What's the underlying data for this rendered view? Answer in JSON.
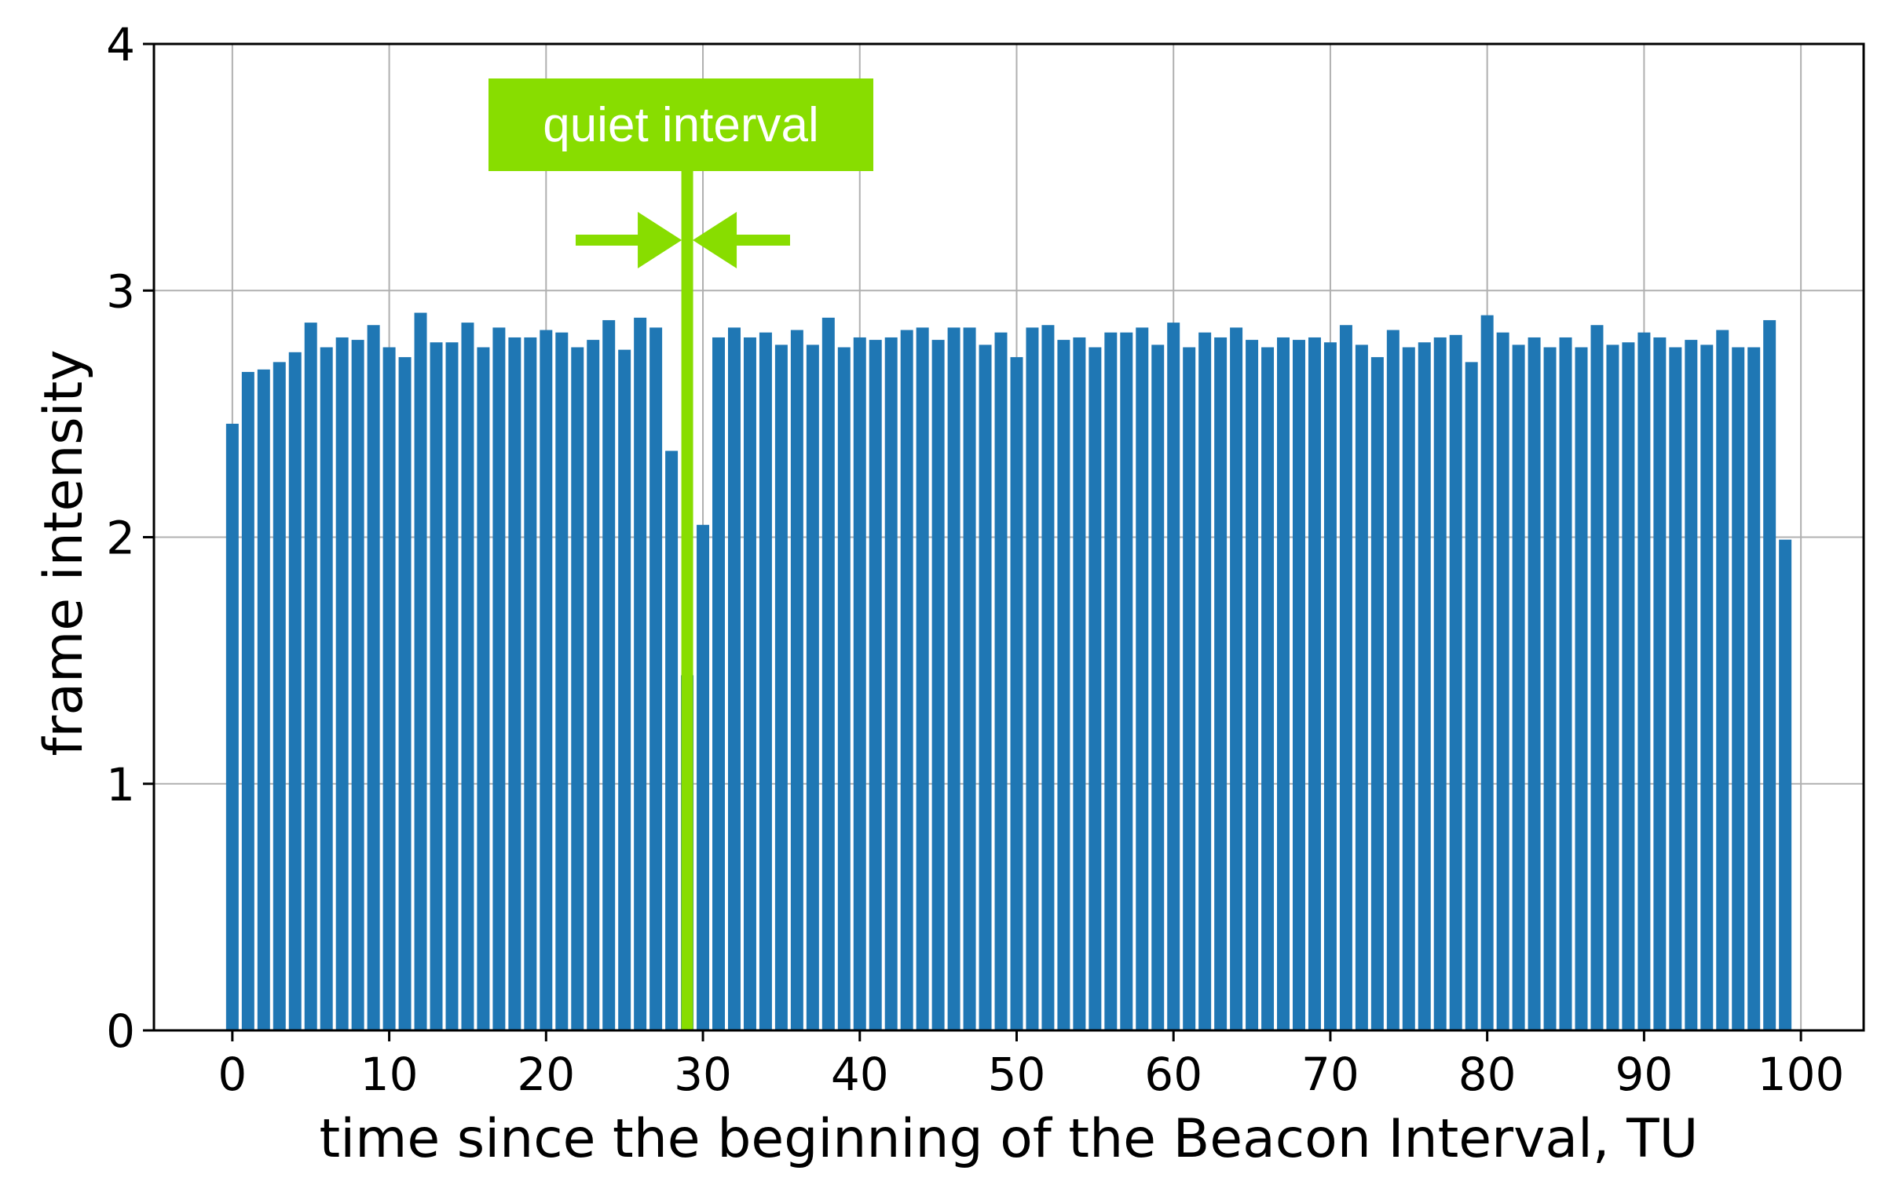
{
  "chart_data": {
    "type": "bar",
    "title": "",
    "xlabel": "time since the beginning of the Beacon Interval, TU",
    "ylabel": "frame intensity",
    "xlim": [
      -5,
      104
    ],
    "ylim": [
      0,
      4
    ],
    "x_ticks": [
      0,
      10,
      20,
      30,
      40,
      50,
      60,
      70,
      80,
      90,
      100
    ],
    "y_ticks": [
      0,
      1,
      2,
      3,
      4
    ],
    "grid": true,
    "bar_color": "#1f77b4",
    "x": [
      0,
      1,
      2,
      3,
      4,
      5,
      6,
      7,
      8,
      9,
      10,
      11,
      12,
      13,
      14,
      15,
      16,
      17,
      18,
      19,
      20,
      21,
      22,
      23,
      24,
      25,
      26,
      27,
      28,
      29,
      30,
      31,
      32,
      33,
      34,
      35,
      36,
      37,
      38,
      39,
      40,
      41,
      42,
      43,
      44,
      45,
      46,
      47,
      48,
      49,
      50,
      51,
      52,
      53,
      54,
      55,
      56,
      57,
      58,
      59,
      60,
      61,
      62,
      63,
      64,
      65,
      66,
      67,
      68,
      69,
      70,
      71,
      72,
      73,
      74,
      75,
      76,
      77,
      78,
      79,
      80,
      81,
      82,
      83,
      84,
      85,
      86,
      87,
      88,
      89,
      90,
      91,
      92,
      93,
      94,
      95,
      96,
      97,
      98,
      99
    ],
    "values": [
      2.46,
      2.67,
      2.68,
      2.71,
      2.75,
      2.87,
      2.77,
      2.81,
      2.8,
      2.86,
      2.77,
      2.73,
      2.91,
      2.79,
      2.79,
      2.87,
      2.77,
      2.85,
      2.81,
      2.81,
      2.84,
      2.83,
      2.77,
      2.8,
      2.88,
      2.76,
      2.89,
      2.85,
      2.35,
      1.44,
      2.05,
      2.81,
      2.85,
      2.81,
      2.83,
      2.78,
      2.84,
      2.78,
      2.89,
      2.77,
      2.81,
      2.8,
      2.81,
      2.84,
      2.85,
      2.8,
      2.85,
      2.85,
      2.78,
      2.83,
      2.73,
      2.85,
      2.86,
      2.8,
      2.81,
      2.77,
      2.83,
      2.83,
      2.85,
      2.78,
      2.87,
      2.77,
      2.83,
      2.81,
      2.85,
      2.8,
      2.77,
      2.81,
      2.8,
      2.81,
      2.79,
      2.86,
      2.78,
      2.73,
      2.84,
      2.77,
      2.79,
      2.81,
      2.82,
      2.71,
      2.9,
      2.83,
      2.78,
      2.81,
      2.77,
      2.81,
      2.77,
      2.86,
      2.78,
      2.79,
      2.83,
      2.81,
      2.77,
      2.8,
      2.78,
      2.84,
      2.77,
      2.77,
      2.88,
      1.99
    ],
    "annotation": {
      "text": "quiet interval",
      "color": "#88dd00",
      "start_x": 28.5,
      "end_x": 29.5
    }
  }
}
